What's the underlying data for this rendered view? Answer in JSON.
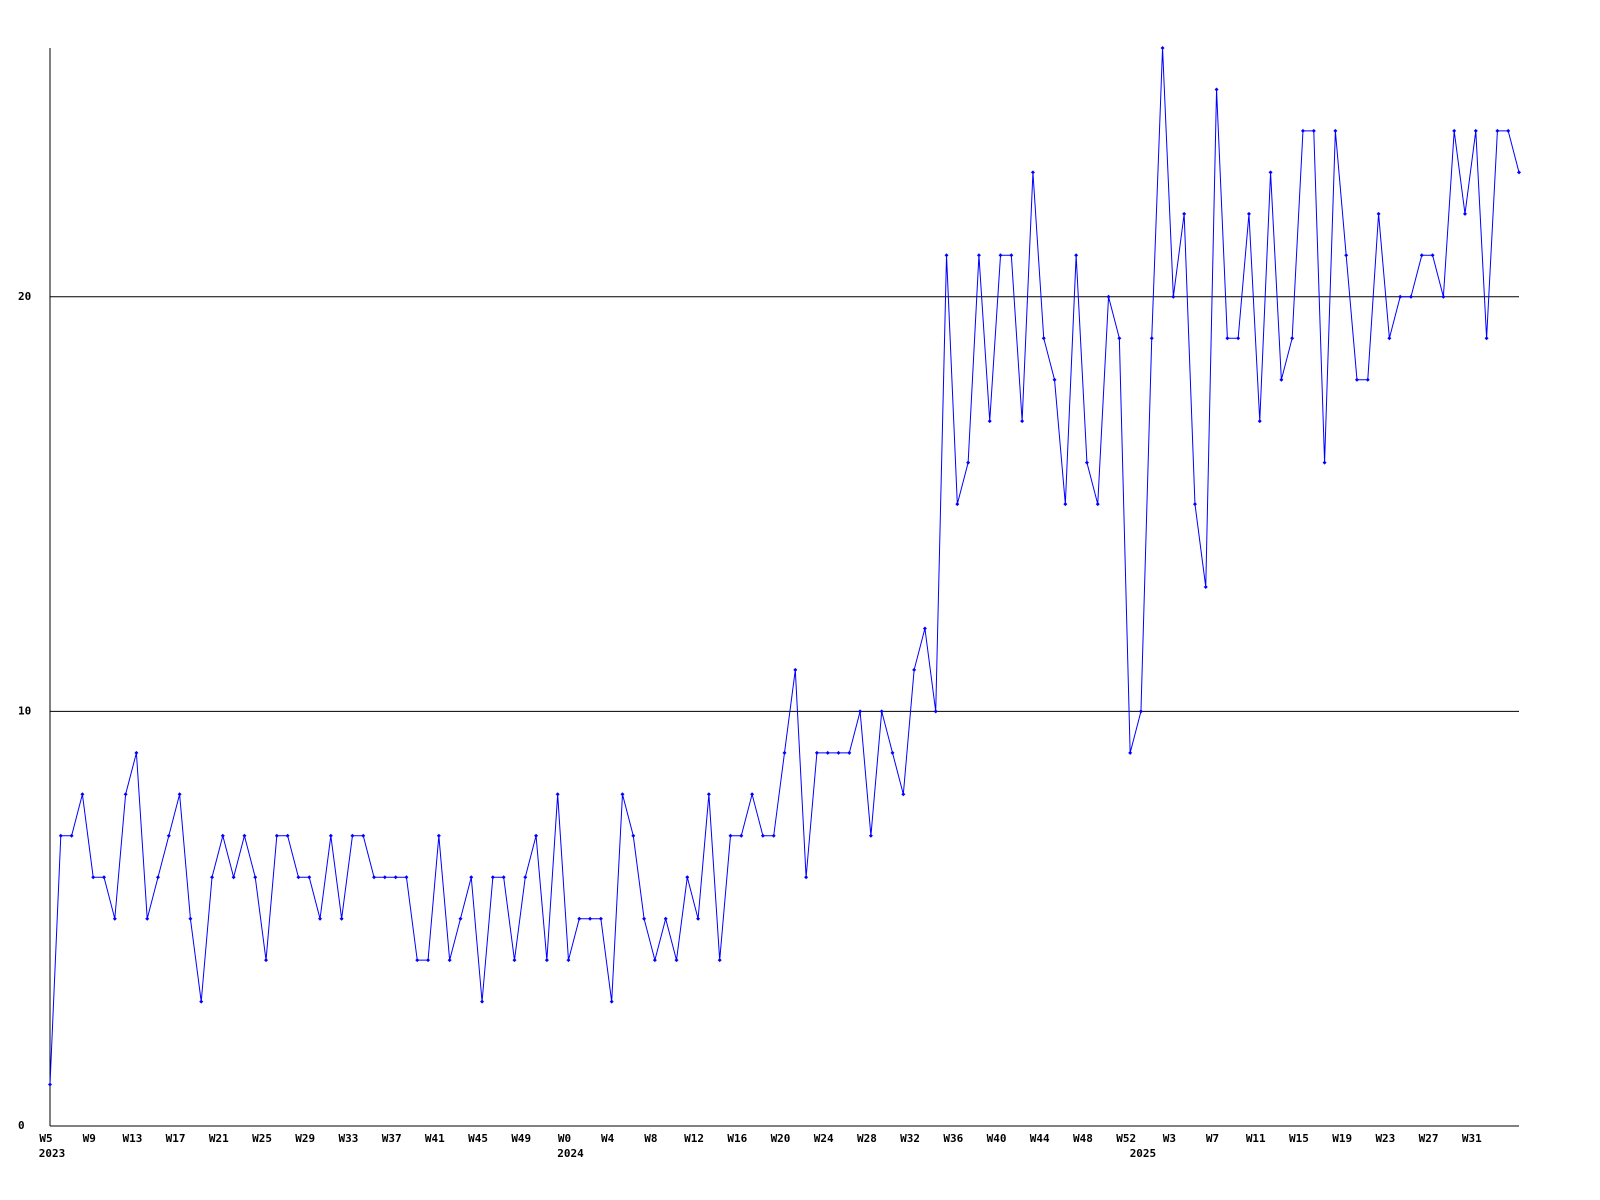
{
  "chart_data": {
    "type": "line",
    "categories": [
      "W5",
      null,
      null,
      null,
      "W9",
      null,
      null,
      null,
      "W13",
      null,
      null,
      null,
      "W17",
      null,
      null,
      null,
      "W21",
      null,
      null,
      null,
      "W25",
      null,
      null,
      null,
      "W29",
      null,
      null,
      null,
      "W33",
      null,
      null,
      null,
      "W37",
      null,
      null,
      null,
      "W41",
      null,
      null,
      null,
      "W45",
      null,
      null,
      null,
      "W49",
      null,
      null,
      null,
      "W0",
      null,
      null,
      null,
      "W4",
      null,
      null,
      null,
      "W8",
      null,
      null,
      null,
      "W12",
      null,
      null,
      null,
      "W16",
      null,
      null,
      null,
      "W20",
      null,
      null,
      null,
      "W24",
      null,
      null,
      null,
      "W28",
      null,
      null,
      null,
      "W32",
      null,
      null,
      null,
      "W36",
      null,
      null,
      null,
      "W40",
      null,
      null,
      null,
      "W44",
      null,
      null,
      null,
      "W48",
      null,
      null,
      null,
      "W52",
      null,
      null,
      null,
      "W3",
      null,
      null,
      null,
      "W7",
      null,
      null,
      null,
      "W11",
      null,
      null,
      null,
      "W15",
      null,
      null,
      null,
      "W19",
      null,
      null,
      null,
      "W23",
      null,
      null,
      null,
      "W27",
      null,
      null,
      null,
      "W31",
      null,
      null,
      null,
      null
    ],
    "category_years": [
      "2023",
      null,
      null,
      null,
      null,
      null,
      null,
      null,
      null,
      null,
      null,
      null,
      null,
      null,
      null,
      null,
      null,
      null,
      null,
      null,
      null,
      null,
      null,
      null,
      null,
      null,
      null,
      null,
      null,
      null,
      null,
      null,
      null,
      null,
      null,
      null,
      null,
      null,
      null,
      null,
      null,
      null,
      null,
      null,
      null,
      null,
      null,
      null,
      "2024",
      null,
      null,
      null,
      null,
      null,
      null,
      null,
      null,
      null,
      null,
      null,
      null,
      null,
      null,
      null,
      null,
      null,
      null,
      null,
      null,
      null,
      null,
      null,
      null,
      null,
      null,
      null,
      null,
      null,
      null,
      null,
      null,
      null,
      null,
      null,
      null,
      null,
      null,
      null,
      null,
      null,
      null,
      null,
      null,
      null,
      null,
      null,
      null,
      null,
      null,
      null,
      null,
      "2025",
      null,
      null,
      null,
      null,
      null,
      null,
      null,
      null,
      null,
      null,
      null,
      null,
      null,
      null,
      null,
      null,
      null,
      null,
      null,
      null,
      null,
      null,
      null,
      null,
      null,
      null,
      null,
      null,
      null,
      null,
      null,
      null,
      null,
      null,
      null
    ],
    "series": [
      {
        "color": "#0000ff",
        "values": [
          1,
          7,
          7,
          8,
          6,
          6,
          5,
          8,
          9,
          5,
          6,
          7,
          8,
          5,
          3,
          6,
          7,
          6,
          7,
          6,
          4,
          7,
          7,
          6,
          6,
          5,
          7,
          5,
          7,
          7,
          6,
          6,
          6,
          6,
          4,
          4,
          7,
          4,
          5,
          6,
          3,
          6,
          6,
          4,
          6,
          7,
          4,
          8,
          4,
          5,
          5,
          5,
          3,
          8,
          7,
          5,
          4,
          5,
          4,
          6,
          5,
          8,
          4,
          7,
          7,
          8,
          7,
          7,
          9,
          11,
          6,
          9,
          9,
          9,
          9,
          10,
          7,
          10,
          9,
          8,
          11,
          12,
          10,
          21,
          15,
          16,
          21,
          17,
          21,
          21,
          17,
          23,
          19,
          18,
          15,
          21,
          16,
          15,
          20,
          19,
          9,
          10,
          19,
          26,
          20,
          22,
          15,
          13,
          25,
          19,
          19,
          22,
          17,
          23,
          18,
          19,
          24,
          24,
          16,
          24,
          21,
          18,
          18,
          22,
          19,
          20,
          20,
          21,
          21,
          20,
          24,
          22,
          24,
          19,
          24,
          24,
          23
        ]
      }
    ],
    "ylim": [
      0,
      26
    ],
    "yticks": [
      0,
      10,
      20
    ],
    "grid": true
  }
}
